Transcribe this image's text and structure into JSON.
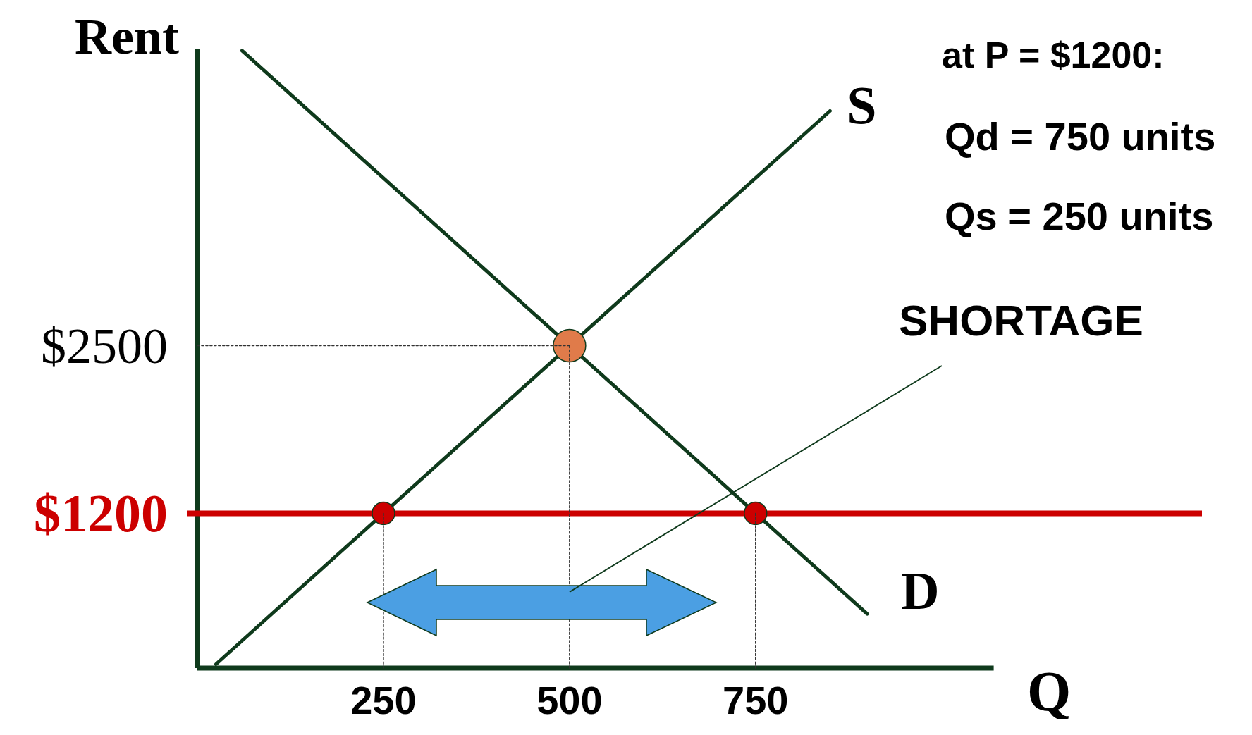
{
  "chart_data": {
    "type": "line",
    "xlabel": "Q",
    "ylabel": "Rent",
    "xlim": [
      0,
      1070
    ],
    "ylim": [
      0,
      4800
    ],
    "xticks": [
      250,
      500,
      750
    ],
    "yticks": [
      {
        "value": 1200,
        "label": "$1200"
      },
      {
        "value": 2500,
        "label": "$2500"
      }
    ],
    "series": [
      {
        "name": "S",
        "color": "#0f3a1c",
        "x": [
          25,
          850
        ],
        "values": [
          30,
          4320
        ]
      },
      {
        "name": "D",
        "color": "#0f3a1c",
        "x": [
          60,
          900
        ],
        "values": [
          4788,
          420
        ]
      },
      {
        "type": "line",
        "color": "#333333",
        "line_style": "dotted",
        "x": [
          0,
          500
        ],
        "values": [
          2500,
          2500
        ]
      },
      {
        "type": "line",
        "color": "#333333",
        "line_style": "dotted",
        "x": [
          250,
          250
        ],
        "values": [
          0,
          1200
        ]
      },
      {
        "type": "line",
        "color": "#333333",
        "line_style": "dotted",
        "x": [
          500,
          500
        ],
        "values": [
          0,
          2500
        ]
      },
      {
        "type": "line",
        "color": "#333333",
        "line_style": "dotted",
        "x": [
          750,
          750
        ],
        "values": [
          0,
          1200
        ]
      },
      {
        "type": "scatter",
        "color": "#e07b4a",
        "marker": "circle",
        "x": [
          500
        ],
        "values": [
          2500
        ]
      },
      {
        "type": "scatter",
        "color": "#cc0000",
        "marker": "circle",
        "x": [
          250,
          750
        ],
        "values": [
          1200,
          1200
        ]
      }
    ],
    "ref_lines": [
      {
        "axis": "y",
        "value": 1200,
        "color": "#cc0000"
      }
    ],
    "annotations": [
      "at P = $1200:",
      "Qd = 750 units",
      "Qs = 250 units",
      "SHORTAGE"
    ]
  }
}
